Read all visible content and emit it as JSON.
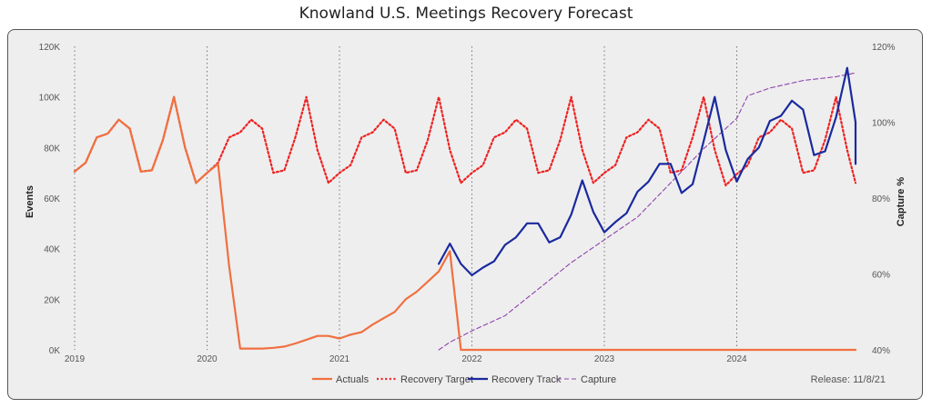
{
  "chart_data": {
    "type": "line",
    "title": "Knowland U.S. Meetings Recovery Forecast",
    "ylabel": "Events",
    "y2label": "Capture %",
    "ylim": [
      0,
      120000
    ],
    "y2lim": [
      40,
      120
    ],
    "xlim": [
      "2019-01",
      "2024-12"
    ],
    "yticks": [
      {
        "value": 0,
        "label": "0K"
      },
      {
        "value": 20000,
        "label": "20K"
      },
      {
        "value": 40000,
        "label": "40K"
      },
      {
        "value": 60000,
        "label": "60K"
      },
      {
        "value": 80000,
        "label": "80K"
      },
      {
        "value": 100000,
        "label": "100K"
      },
      {
        "value": 120000,
        "label": "120K"
      }
    ],
    "y2ticks": [
      {
        "value": 40,
        "label": "40%"
      },
      {
        "value": 60,
        "label": "60%"
      },
      {
        "value": 80,
        "label": "80%"
      },
      {
        "value": 100,
        "label": "100%"
      },
      {
        "value": 120,
        "label": "120%"
      }
    ],
    "xticks": [
      {
        "value": "2019-01",
        "label": "2019"
      },
      {
        "value": "2020-01",
        "label": "2020"
      },
      {
        "value": "2021-01",
        "label": "2021"
      },
      {
        "value": "2022-01",
        "label": "2022"
      },
      {
        "value": "2023-01",
        "label": "2023"
      },
      {
        "value": "2024-01",
        "label": "2024"
      }
    ],
    "grid": "vertical dotted lines at years",
    "legend_position": "bottom",
    "series": [
      {
        "name": "Actuals",
        "axis": "left",
        "color": "#f07040",
        "style": "solid",
        "points": [
          [
            "2019-01",
            70500
          ],
          [
            "2019-02",
            74000
          ],
          [
            "2019-03",
            84000
          ],
          [
            "2019-04",
            85500
          ],
          [
            "2019-05",
            91000
          ],
          [
            "2019-06",
            87500
          ],
          [
            "2019-07",
            70500
          ],
          [
            "2019-08",
            71000
          ],
          [
            "2019-09",
            83000
          ],
          [
            "2019-10",
            100000
          ],
          [
            "2019-11",
            80000
          ],
          [
            "2019-12",
            66000
          ],
          [
            "2020-01",
            70000
          ],
          [
            "2020-02",
            73500
          ],
          [
            "2020-03",
            33000
          ],
          [
            "2020-04",
            500
          ],
          [
            "2020-05",
            500
          ],
          [
            "2020-06",
            500
          ],
          [
            "2020-07",
            800
          ],
          [
            "2020-08",
            1300
          ],
          [
            "2020-09",
            2500
          ],
          [
            "2020-10",
            4000
          ],
          [
            "2020-11",
            5500
          ],
          [
            "2020-12",
            5500
          ],
          [
            "2021-01",
            4500
          ],
          [
            "2021-02",
            6000
          ],
          [
            "2021-03",
            7000
          ],
          [
            "2021-04",
            10000
          ],
          [
            "2021-05",
            12500
          ],
          [
            "2021-06",
            15000
          ],
          [
            "2021-07",
            20000
          ],
          [
            "2021-08",
            23000
          ],
          [
            "2021-09",
            27000
          ],
          [
            "2021-10",
            31000
          ],
          [
            "2021-11",
            39000
          ],
          [
            "2021-12",
            0
          ],
          [
            "2022-01",
            0
          ],
          [
            "2022-06",
            0
          ],
          [
            "2023-01",
            0
          ],
          [
            "2023-06",
            0
          ],
          [
            "2024-01",
            0
          ],
          [
            "2024-06",
            0
          ],
          [
            "2024-12",
            0
          ]
        ]
      },
      {
        "name": "Recovery Target",
        "axis": "left",
        "color": "#ee2222",
        "style": "dotted",
        "points": [
          [
            "2019-01",
            70500
          ],
          [
            "2019-02",
            74000
          ],
          [
            "2019-03",
            84000
          ],
          [
            "2019-04",
            85500
          ],
          [
            "2019-05",
            91000
          ],
          [
            "2019-06",
            87500
          ],
          [
            "2019-07",
            70500
          ],
          [
            "2019-08",
            71000
          ],
          [
            "2019-09",
            83000
          ],
          [
            "2019-10",
            100000
          ],
          [
            "2019-11",
            80000
          ],
          [
            "2019-12",
            66000
          ],
          [
            "2020-01",
            70000
          ],
          [
            "2020-02",
            74000
          ],
          [
            "2020-03",
            84000
          ],
          [
            "2020-04",
            86000
          ],
          [
            "2020-05",
            91000
          ],
          [
            "2020-06",
            87500
          ],
          [
            "2020-07",
            70000
          ],
          [
            "2020-08",
            71000
          ],
          [
            "2020-09",
            84000
          ],
          [
            "2020-10",
            100000
          ],
          [
            "2020-11",
            79000
          ],
          [
            "2020-12",
            66000
          ],
          [
            "2021-01",
            70000
          ],
          [
            "2021-02",
            73000
          ],
          [
            "2021-03",
            84000
          ],
          [
            "2021-04",
            86000
          ],
          [
            "2021-05",
            91000
          ],
          [
            "2021-06",
            87500
          ],
          [
            "2021-07",
            70000
          ],
          [
            "2021-08",
            71000
          ],
          [
            "2021-09",
            83000
          ],
          [
            "2021-10",
            100000
          ],
          [
            "2021-11",
            79000
          ],
          [
            "2021-12",
            66000
          ],
          [
            "2022-01",
            70000
          ],
          [
            "2022-02",
            73000
          ],
          [
            "2022-03",
            84000
          ],
          [
            "2022-04",
            86000
          ],
          [
            "2022-05",
            91000
          ],
          [
            "2022-06",
            87500
          ],
          [
            "2022-07",
            70000
          ],
          [
            "2022-08",
            71000
          ],
          [
            "2022-09",
            83000
          ],
          [
            "2022-10",
            100000
          ],
          [
            "2022-11",
            79000
          ],
          [
            "2022-12",
            66000
          ],
          [
            "2023-01",
            70000
          ],
          [
            "2023-02",
            73000
          ],
          [
            "2023-03",
            84000
          ],
          [
            "2023-04",
            86000
          ],
          [
            "2023-05",
            91000
          ],
          [
            "2023-06",
            87500
          ],
          [
            "2023-07",
            70000
          ],
          [
            "2023-08",
            71000
          ],
          [
            "2023-09",
            84000
          ],
          [
            "2023-10",
            100000
          ],
          [
            "2023-11",
            79000
          ],
          [
            "2023-12",
            65000
          ],
          [
            "2024-01",
            69500
          ],
          [
            "2024-02",
            73000
          ],
          [
            "2024-03",
            84000
          ],
          [
            "2024-04",
            86000
          ],
          [
            "2024-05",
            91000
          ],
          [
            "2024-06",
            87500
          ],
          [
            "2024-07",
            70000
          ],
          [
            "2024-08",
            71000
          ],
          [
            "2024-09",
            83000
          ],
          [
            "2024-10",
            100000
          ],
          [
            "2024-11",
            79000
          ],
          [
            "2024-12",
            66000
          ]
        ]
      },
      {
        "name": "Recovery Track",
        "axis": "left",
        "color": "#1a2a9e",
        "style": "solid",
        "points": [
          [
            "2021-10",
            34000
          ],
          [
            "2021-11",
            42000
          ],
          [
            "2021-12",
            34000
          ],
          [
            "2022-01",
            29500
          ],
          [
            "2022-02",
            32500
          ],
          [
            "2022-03",
            35000
          ],
          [
            "2022-04",
            41500
          ],
          [
            "2022-05",
            44500
          ],
          [
            "2022-06",
            50000
          ],
          [
            "2022-07",
            50000
          ],
          [
            "2022-08",
            42500
          ],
          [
            "2022-09",
            44500
          ],
          [
            "2022-10",
            53500
          ],
          [
            "2022-11",
            67000
          ],
          [
            "2022-12",
            54500
          ],
          [
            "2023-01",
            46500
          ],
          [
            "2023-02",
            50500
          ],
          [
            "2023-03",
            54000
          ],
          [
            "2023-04",
            62500
          ],
          [
            "2023-05",
            66500
          ],
          [
            "2023-06",
            73500
          ],
          [
            "2023-07",
            73500
          ],
          [
            "2023-08",
            62000
          ],
          [
            "2023-09",
            65500
          ],
          [
            "2023-10",
            82500
          ],
          [
            "2023-11",
            100000
          ],
          [
            "2023-12",
            79000
          ],
          [
            "2024-01",
            66500
          ],
          [
            "2024-02",
            75500
          ],
          [
            "2024-03",
            80000
          ],
          [
            "2024-04",
            90500
          ],
          [
            "2024-05",
            92500
          ],
          [
            "2024-06",
            98500
          ],
          [
            "2024-07",
            95000
          ],
          [
            "2024-08",
            77000
          ],
          [
            "2024-09",
            78500
          ],
          [
            "2024-10",
            92000
          ],
          [
            "2024-11",
            111500
          ],
          [
            "2024-12",
            90000
          ],
          [
            "2025-01",
            73500
          ]
        ]
      },
      {
        "name": "Capture",
        "axis": "right",
        "color": "#8e44ad",
        "style": "dashed",
        "points": [
          [
            "2021-10",
            40
          ],
          [
            "2021-11",
            42
          ],
          [
            "2022-01",
            45
          ],
          [
            "2022-04",
            49
          ],
          [
            "2022-07",
            56
          ],
          [
            "2022-10",
            63
          ],
          [
            "2023-01",
            69
          ],
          [
            "2023-04",
            75
          ],
          [
            "2023-07",
            84
          ],
          [
            "2023-10",
            93
          ],
          [
            "2024-01",
            101
          ],
          [
            "2024-02",
            107
          ],
          [
            "2024-04",
            109
          ],
          [
            "2024-07",
            111
          ],
          [
            "2024-10",
            112
          ],
          [
            "2025-01",
            113
          ]
        ]
      }
    ],
    "release": "Release: 11/8/21"
  }
}
